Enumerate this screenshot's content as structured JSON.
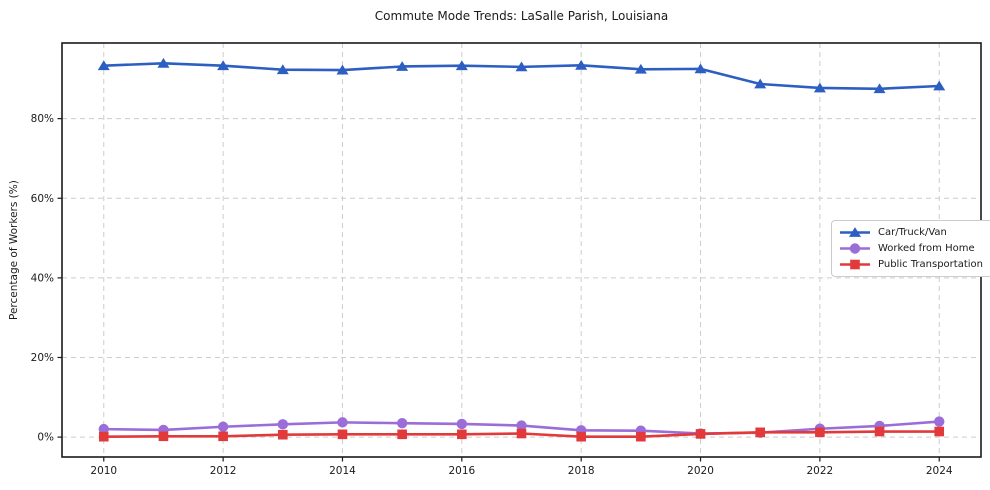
{
  "chart_data": {
    "type": "line",
    "title": "Commute Mode Trends: LaSalle Parish, Louisiana",
    "xlabel": "",
    "ylabel": "Percentage of Workers (%)",
    "x": [
      2010,
      2011,
      2012,
      2013,
      2014,
      2015,
      2016,
      2017,
      2018,
      2019,
      2020,
      2021,
      2022,
      2023,
      2024
    ],
    "x_ticks": [
      2010,
      2012,
      2014,
      2016,
      2018,
      2020,
      2022,
      2024
    ],
    "x_tick_labels": [
      "2010",
      "2012",
      "2014",
      "2016",
      "2018",
      "2020",
      "2022",
      "2024"
    ],
    "y_ticks": [
      0,
      20,
      40,
      60,
      80
    ],
    "y_tick_labels": [
      "0%",
      "20%",
      "40%",
      "60%",
      "80%"
    ],
    "xlim": [
      2009.3,
      2024.7
    ],
    "ylim": [
      -5,
      99
    ],
    "grid": true,
    "grid_style": "dashed",
    "legend_position": "center-right",
    "series": [
      {
        "name": "Car/Truck/Van",
        "color": "#2d5fc2",
        "marker": "triangle-up",
        "values": [
          93.3,
          93.9,
          93.3,
          92.3,
          92.2,
          93.1,
          93.3,
          93.0,
          93.4,
          92.4,
          92.5,
          88.7,
          87.7,
          87.5,
          88.2
        ]
      },
      {
        "name": "Worked from Home",
        "color": "#9a6dd9",
        "marker": "circle",
        "values": [
          2.0,
          1.8,
          2.6,
          3.2,
          3.7,
          3.5,
          3.3,
          2.9,
          1.7,
          1.6,
          0.9,
          1.1,
          2.1,
          2.8,
          3.9
        ]
      },
      {
        "name": "Public Transportation",
        "color": "#e23a3a",
        "marker": "square",
        "values": [
          0.1,
          0.2,
          0.2,
          0.6,
          0.7,
          0.7,
          0.7,
          0.9,
          0.1,
          0.1,
          0.8,
          1.2,
          1.2,
          1.4,
          1.4
        ]
      }
    ],
    "colors": {
      "grid": "#cccccc",
      "frame": "#1a1a1a",
      "background": "#ffffff",
      "tick_text": "#1a1a1a"
    }
  }
}
